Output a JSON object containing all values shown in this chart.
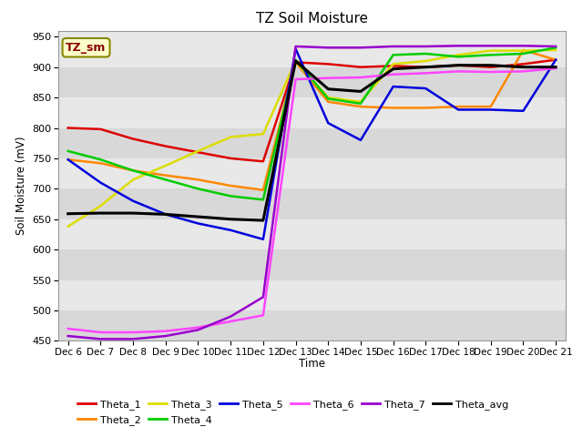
{
  "title": "TZ Soil Moisture",
  "xlabel": "Time",
  "ylabel": "Soil Moisture (mV)",
  "ylim": [
    450,
    960
  ],
  "yticks": [
    450,
    500,
    550,
    600,
    650,
    700,
    750,
    800,
    850,
    900,
    950
  ],
  "x_labels": [
    "Dec 6",
    "Dec 7",
    "Dec 8",
    "Dec 9",
    "Dec 10",
    "Dec 11",
    "Dec 12",
    "Dec 13",
    "Dec 14",
    "Dec 15",
    "Dec 16",
    "Dec 17",
    "Dec 18",
    "Dec 19",
    "Dec 20",
    "Dec 21"
  ],
  "x_vals": [
    0,
    1,
    2,
    3,
    4,
    5,
    6,
    7,
    8,
    9,
    10,
    11,
    12,
    13,
    14,
    15
  ],
  "series": {
    "Theta_1": {
      "color": "#dd0000",
      "data_x": [
        0,
        1,
        2,
        3,
        4,
        5,
        6,
        7,
        8,
        9,
        10,
        11,
        12,
        13,
        14,
        15
      ],
      "data_y": [
        800,
        798,
        782,
        770,
        760,
        750,
        745,
        908,
        905,
        900,
        902,
        900,
        903,
        900,
        905,
        912
      ]
    },
    "Theta_2": {
      "color": "#ff8800",
      "data_x": [
        0,
        1,
        2,
        3,
        4,
        5,
        6,
        7,
        8,
        9,
        10,
        11,
        12,
        13,
        14,
        15
      ],
      "data_y": [
        748,
        742,
        730,
        722,
        715,
        705,
        698,
        908,
        843,
        835,
        833,
        833,
        835,
        835,
        928,
        912
      ]
    },
    "Theta_3": {
      "color": "#dddd00",
      "data_x": [
        0,
        1,
        2,
        3,
        4,
        5,
        6,
        7,
        8,
        9,
        10,
        11,
        12,
        13,
        14,
        15
      ],
      "data_y": [
        638,
        672,
        715,
        738,
        762,
        785,
        790,
        910,
        850,
        843,
        905,
        910,
        920,
        927,
        927,
        928
      ]
    },
    "Theta_4": {
      "color": "#00cc00",
      "data_x": [
        0,
        1,
        2,
        3,
        4,
        5,
        6,
        7,
        8,
        9,
        10,
        11,
        12,
        13,
        14,
        15
      ],
      "data_y": [
        762,
        748,
        730,
        715,
        700,
        688,
        682,
        912,
        848,
        840,
        920,
        922,
        917,
        920,
        922,
        932
      ]
    },
    "Theta_5": {
      "color": "#0000dd",
      "data_x": [
        0,
        1,
        2,
        3,
        4,
        5,
        6,
        7,
        8,
        9,
        10,
        11,
        12,
        13,
        14,
        15
      ],
      "data_y": [
        748,
        710,
        680,
        658,
        643,
        632,
        617,
        930,
        808,
        780,
        868,
        865,
        830,
        830,
        828,
        912
      ]
    },
    "Theta_6": {
      "color": "#ff44ff",
      "data_x": [
        0,
        1,
        2,
        3,
        4,
        5,
        6,
        7,
        8,
        9,
        10,
        11,
        12,
        13,
        14,
        15
      ],
      "data_y": [
        470,
        464,
        464,
        466,
        472,
        482,
        492,
        880,
        882,
        883,
        888,
        890,
        893,
        892,
        893,
        898
      ]
    },
    "Theta_7": {
      "color": "#9900cc",
      "data_x": [
        0,
        1,
        2,
        3,
        4,
        5,
        6,
        7,
        8,
        9,
        10,
        11,
        12,
        13,
        14,
        15
      ],
      "data_y": [
        458,
        453,
        453,
        458,
        468,
        490,
        522,
        934,
        932,
        932,
        934,
        934,
        935,
        935,
        935,
        934
      ]
    },
    "Theta_avg": {
      "color": "#000000",
      "data_x": [
        0,
        1,
        2,
        3,
        4,
        5,
        6,
        7,
        8,
        9,
        10,
        11,
        12,
        13,
        14,
        15
      ],
      "data_y": [
        659,
        660,
        660,
        658,
        654,
        650,
        648,
        910,
        864,
        860,
        897,
        900,
        903,
        903,
        900,
        900
      ]
    }
  },
  "band_colors": [
    "#d8d8d8",
    "#e8e8e8"
  ],
  "annotation_text": "TZ_sm",
  "annotation_color": "#880000",
  "annotation_bg": "#ffffcc",
  "annotation_border": "#888800"
}
